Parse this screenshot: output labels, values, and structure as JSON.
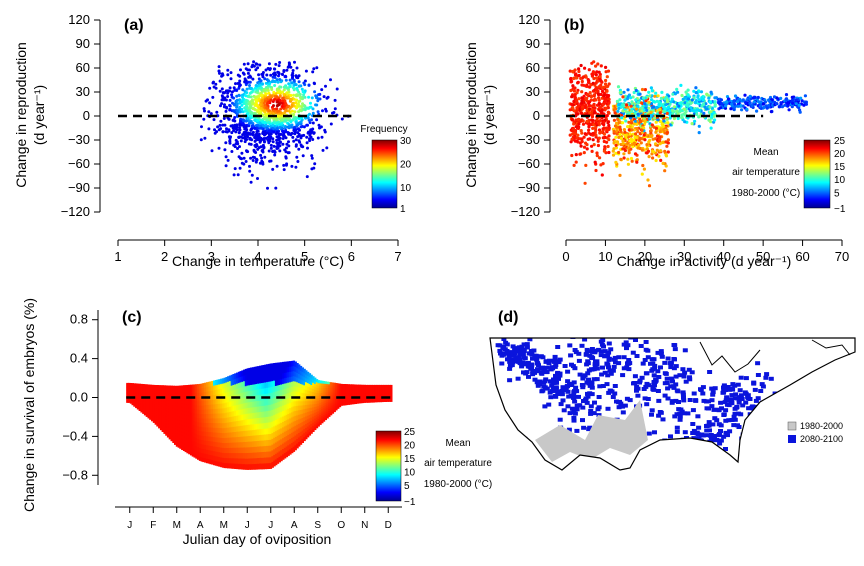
{
  "chart_data": [
    {
      "panel": "(a)",
      "type": "scatter",
      "xlabel": "Change in temperature (°C)",
      "ylabel": "Change in reproduction",
      "ylabel_unit": "(d year⁻¹)",
      "xlim": [
        1,
        7
      ],
      "ylim": [
        -120,
        120
      ],
      "xticks": [
        1,
        2,
        3,
        4,
        5,
        6,
        7
      ],
      "yticks": [
        -120,
        -90,
        -60,
        -30,
        0,
        30,
        60,
        90,
        120
      ],
      "reference_line_y": 0,
      "colorbar": {
        "title": "Frequency",
        "ticks": [
          1,
          10,
          20,
          30
        ],
        "min": 1,
        "max": 30
      },
      "point_cloud": {
        "x_center": 4.2,
        "x_spread": 0.55,
        "y_center": 5,
        "y_spread": 30,
        "x_range": [
          2.6,
          6.1
        ],
        "y_range": [
          -95,
          68
        ]
      }
    },
    {
      "panel": "(b)",
      "type": "scatter",
      "xlabel": "Change in activity (d year⁻¹)",
      "ylabel": "Change in reproduction",
      "ylabel_unit": "(d year⁻¹)",
      "xlim": [
        0,
        70
      ],
      "ylim": [
        -120,
        120
      ],
      "xticks": [
        0,
        10,
        20,
        30,
        40,
        50,
        60,
        70
      ],
      "yticks": [
        -120,
        -90,
        -60,
        -30,
        0,
        30,
        60,
        90,
        120
      ],
      "reference_line_y": 0,
      "reference_line_x_end": 50,
      "colorbar": {
        "title": [
          "Mean",
          "air temperature",
          "1980-2000 (°C)"
        ],
        "ticks": [
          -1,
          5,
          10,
          15,
          20,
          25
        ],
        "min": -1,
        "max": 25
      },
      "point_cloud": {
        "x_range": [
          1,
          61
        ],
        "y_range": [
          -90,
          68
        ]
      }
    },
    {
      "panel": "(c)",
      "type": "area",
      "xlabel": "Julian day of oviposition",
      "ylabel": "Change in survival of embryos (%)",
      "ylim": [
        -0.9,
        0.9
      ],
      "yticks": [
        -0.8,
        -0.4,
        0.0,
        0.4,
        0.8
      ],
      "ytick_labels": [
        "−0.8",
        "−0.4",
        "0.0",
        "0.4",
        "0.8"
      ],
      "xticks": [
        "J",
        "F",
        "M",
        "A",
        "M",
        "J",
        "J",
        "A",
        "S",
        "O",
        "N",
        "D"
      ],
      "reference_line_y": 0,
      "colorbar": {
        "title": [
          "Mean",
          "air temperature",
          "1980-2000 (°C)"
        ],
        "ticks": [
          -1,
          5,
          10,
          15,
          20,
          25
        ],
        "min": -1,
        "max": 25
      },
      "envelope": {
        "months": [
          1,
          2,
          3,
          4,
          5,
          6,
          7,
          8,
          9,
          10,
          11,
          12
        ],
        "upper": [
          0.15,
          0.13,
          0.12,
          0.14,
          0.2,
          0.3,
          0.35,
          0.38,
          0.18,
          0.14,
          0.13,
          0.13
        ],
        "lower": [
          -0.05,
          -0.25,
          -0.5,
          -0.65,
          -0.72,
          -0.74,
          -0.73,
          -0.55,
          -0.3,
          -0.08,
          -0.05,
          -0.04
        ]
      }
    },
    {
      "panel": "(d)",
      "type": "map",
      "legend": [
        {
          "label": "1980-2000",
          "color": "#c8c8c8"
        },
        {
          "label": "2080-2100",
          "color": "#0a14dc"
        }
      ]
    }
  ]
}
